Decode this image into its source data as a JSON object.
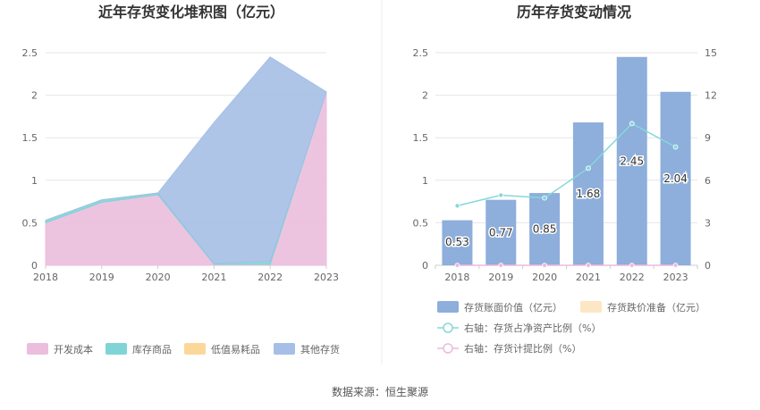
{
  "source_text": "数据来源：恒生聚源",
  "chart_data": [
    {
      "type": "area",
      "title": "近年存货变化堆积图（亿元）",
      "categories": [
        "2018",
        "2019",
        "2020",
        "2021",
        "2022",
        "2023"
      ],
      "y_ticks": [
        "0",
        "0.5",
        "1",
        "1.5",
        "2",
        "2.5"
      ],
      "ylim": [
        0,
        2.5
      ],
      "stacked": true,
      "grid": true,
      "legend_position": "bottom",
      "series": [
        {
          "name": "开发成本",
          "color": "#ebbedd",
          "values": [
            0.5,
            0.74,
            0.83,
            0.01,
            0.01,
            2.04
          ]
        },
        {
          "name": "库存商品",
          "color": "#7fd4d6",
          "values": [
            0.03,
            0.03,
            0.02,
            0.01,
            0.04,
            0.0
          ]
        },
        {
          "name": "低值易耗品",
          "color": "#fbd89a",
          "values": [
            0,
            0,
            0,
            0,
            0,
            0
          ]
        },
        {
          "name": "其他存货",
          "color": "#a5bfe6",
          "values": [
            0,
            0,
            0,
            1.66,
            2.4,
            0
          ]
        }
      ]
    },
    {
      "type": "bar",
      "title": "历年存货变动情况",
      "categories": [
        "2018",
        "2019",
        "2020",
        "2021",
        "2022",
        "2023"
      ],
      "y_ticks": [
        "0",
        "0.5",
        "1",
        "1.5",
        "2",
        "2.5"
      ],
      "ylim": [
        0,
        2.5
      ],
      "y2_ticks": [
        "0",
        "3",
        "6",
        "9",
        "12",
        "15"
      ],
      "y2lim": [
        0,
        15
      ],
      "grid": true,
      "legend_position": "bottom",
      "series": [
        {
          "name": "存货账面价值（亿元）",
          "kind": "bar",
          "axis": "left",
          "color": "#8eaedb",
          "values": [
            0.53,
            0.77,
            0.85,
            1.68,
            2.45,
            2.04
          ],
          "labels": [
            "0.53",
            "0.77",
            "0.85",
            "1.68",
            "2.45",
            "2.04"
          ]
        },
        {
          "name": "存货跌价准备（亿元）",
          "kind": "bar",
          "axis": "left",
          "color": "#fde6c4",
          "values": [
            0,
            0,
            0,
            0,
            0,
            0
          ]
        },
        {
          "name": "右轴：存货占净资产比例（%）",
          "kind": "line",
          "axis": "right",
          "color": "#85d8d8",
          "values": [
            4.2,
            4.95,
            4.75,
            6.85,
            10.0,
            8.35
          ]
        },
        {
          "name": "右轴：存货计提比例（%）",
          "kind": "line",
          "axis": "right",
          "color": "#eeb9dd",
          "values": [
            0,
            0,
            0,
            0,
            0,
            0
          ]
        }
      ]
    }
  ]
}
